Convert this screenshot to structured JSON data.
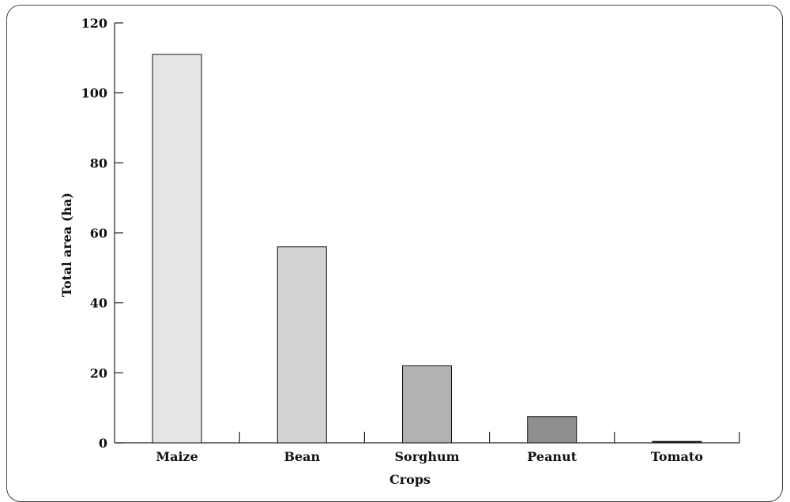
{
  "chart_data": {
    "type": "bar",
    "categories": [
      "Maize",
      "Bean",
      "Sorghum",
      "Peanut",
      "Tomato"
    ],
    "values": [
      111,
      56,
      22,
      7.5,
      0.4
    ],
    "colors": [
      "#e4e5e7",
      "#d2d3d5",
      "#b1b2b4",
      "#8e8f91",
      "#2a2a2a"
    ],
    "xlabel": "Crops",
    "ylabel": "Total area (ha)",
    "ylim": [
      0,
      120
    ],
    "yticks": [
      0,
      20,
      40,
      60,
      80,
      100,
      120
    ],
    "grid": false
  }
}
